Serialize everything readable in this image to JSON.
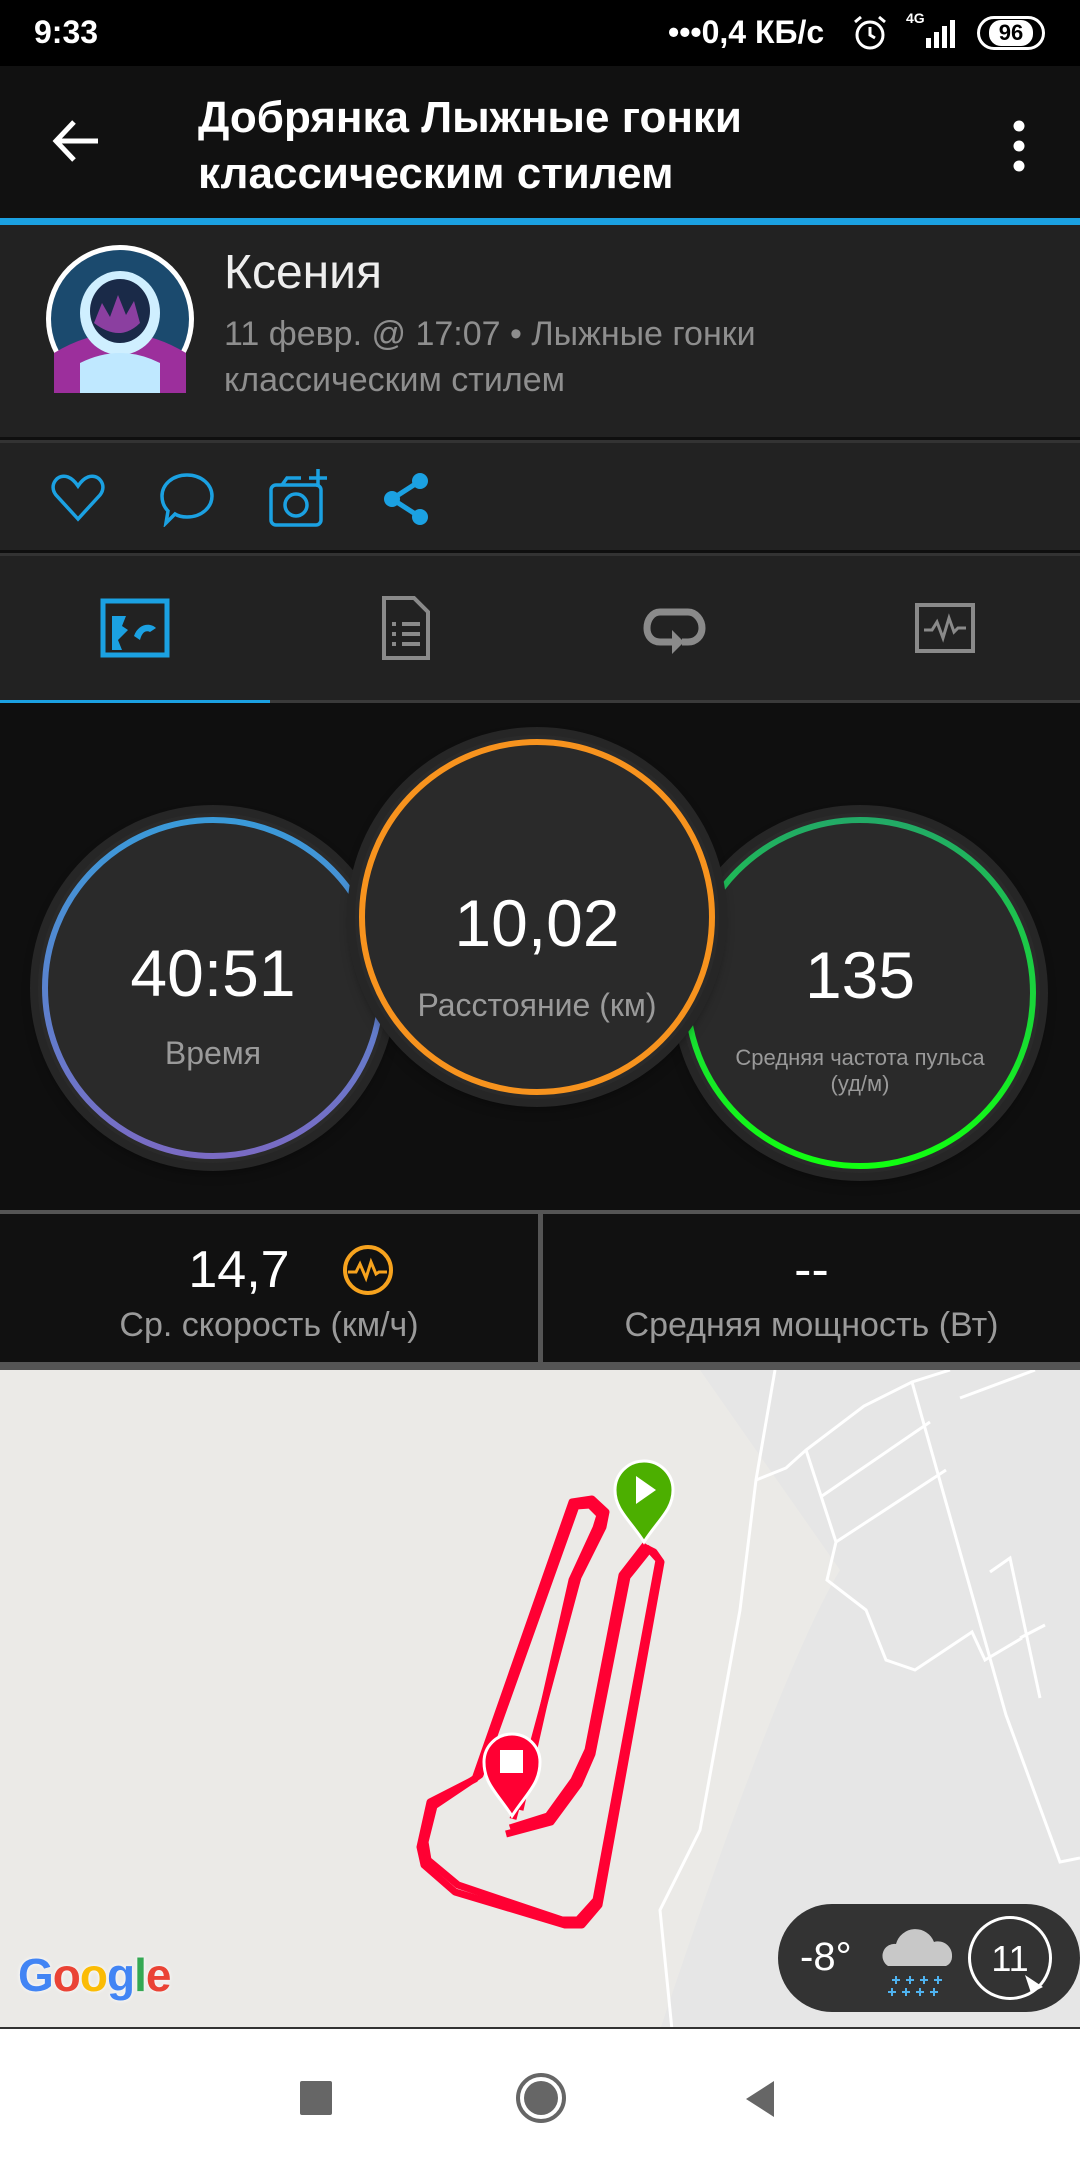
{
  "status_bar": {
    "time": "9:33",
    "network_speed": "•••0,4 КБ/с",
    "network_type": "4G",
    "battery": "96",
    "icons": [
      "alarm-icon",
      "signal-icon",
      "battery-icon"
    ]
  },
  "app_bar": {
    "title_line1": "Добрянка Лыжные гонки",
    "title_line2": "классическим стилем",
    "back_icon": "arrow-left-icon",
    "menu_icon": "more-vertical-icon"
  },
  "profile": {
    "name": "Ксения",
    "meta_line1": "11 февр. @ 17:07 • Лыжные гонки",
    "meta_line2": "классическим стилем"
  },
  "actions": [
    {
      "icon": "heart-icon"
    },
    {
      "icon": "comment-icon"
    },
    {
      "icon": "add-photo-icon"
    },
    {
      "icon": "share-icon"
    }
  ],
  "tabs": [
    {
      "icon": "map-tab-icon",
      "active": true
    },
    {
      "icon": "details-tab-icon"
    },
    {
      "icon": "laps-tab-icon"
    },
    {
      "icon": "charts-tab-icon"
    }
  ],
  "metrics": {
    "time": {
      "value": "40:51",
      "label": "Время"
    },
    "distance": {
      "value": "10,02",
      "label": "Расстояние (км)"
    },
    "heart_rate": {
      "value": "135",
      "label_line1": "Средняя частота пульса",
      "label_line2": "(уд/м)"
    }
  },
  "stats": {
    "speed": {
      "value": "14,7",
      "label": "Ср. скорость (км/ч)"
    },
    "power": {
      "value": "--",
      "label": "Средняя мощность (Вт)"
    }
  },
  "map": {
    "logo": "Google",
    "weather": {
      "temperature": "-8°",
      "icon": "snow-cloud-icon",
      "wind": "11"
    }
  },
  "colors": {
    "accent": "#1ba1e2",
    "time_ring": "#3a9ad9",
    "distance_ring": "#f7931e",
    "hr_ring": "#1ee61e",
    "route": "#ff0033",
    "start_pin": "#4caf00"
  }
}
